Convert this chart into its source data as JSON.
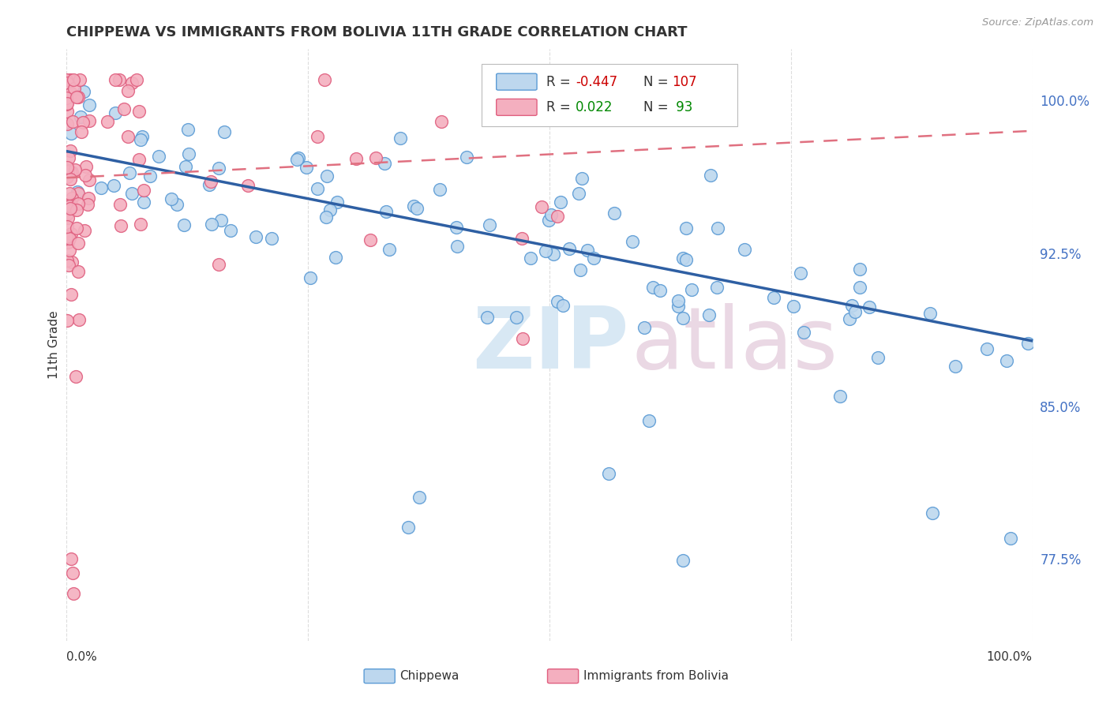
{
  "title": "CHIPPEWA VS IMMIGRANTS FROM BOLIVIA 11TH GRADE CORRELATION CHART",
  "source_text": "Source: ZipAtlas.com",
  "ylabel": "11th Grade",
  "color_blue": "#BDD7EE",
  "color_blue_edge": "#5B9BD5",
  "color_pink": "#F4AFBF",
  "color_pink_edge": "#E06080",
  "color_blue_line": "#2E5FA3",
  "color_pink_line": "#E07080",
  "ylim_low": 0.735,
  "ylim_high": 1.025,
  "xlim_low": 0.0,
  "xlim_high": 1.0,
  "ytick_vals": [
    0.775,
    0.85,
    0.925,
    1.0
  ],
  "ytick_labels": [
    "77.5%",
    "85.0%",
    "92.5%",
    "100.0%"
  ],
  "blue_trend_x0": 0.0,
  "blue_trend_y0": 0.975,
  "blue_trend_x1": 1.0,
  "blue_trend_y1": 0.882,
  "pink_trend_x0": 0.0,
  "pink_trend_y0": 0.962,
  "pink_trend_x1": 1.0,
  "pink_trend_y1": 0.985
}
